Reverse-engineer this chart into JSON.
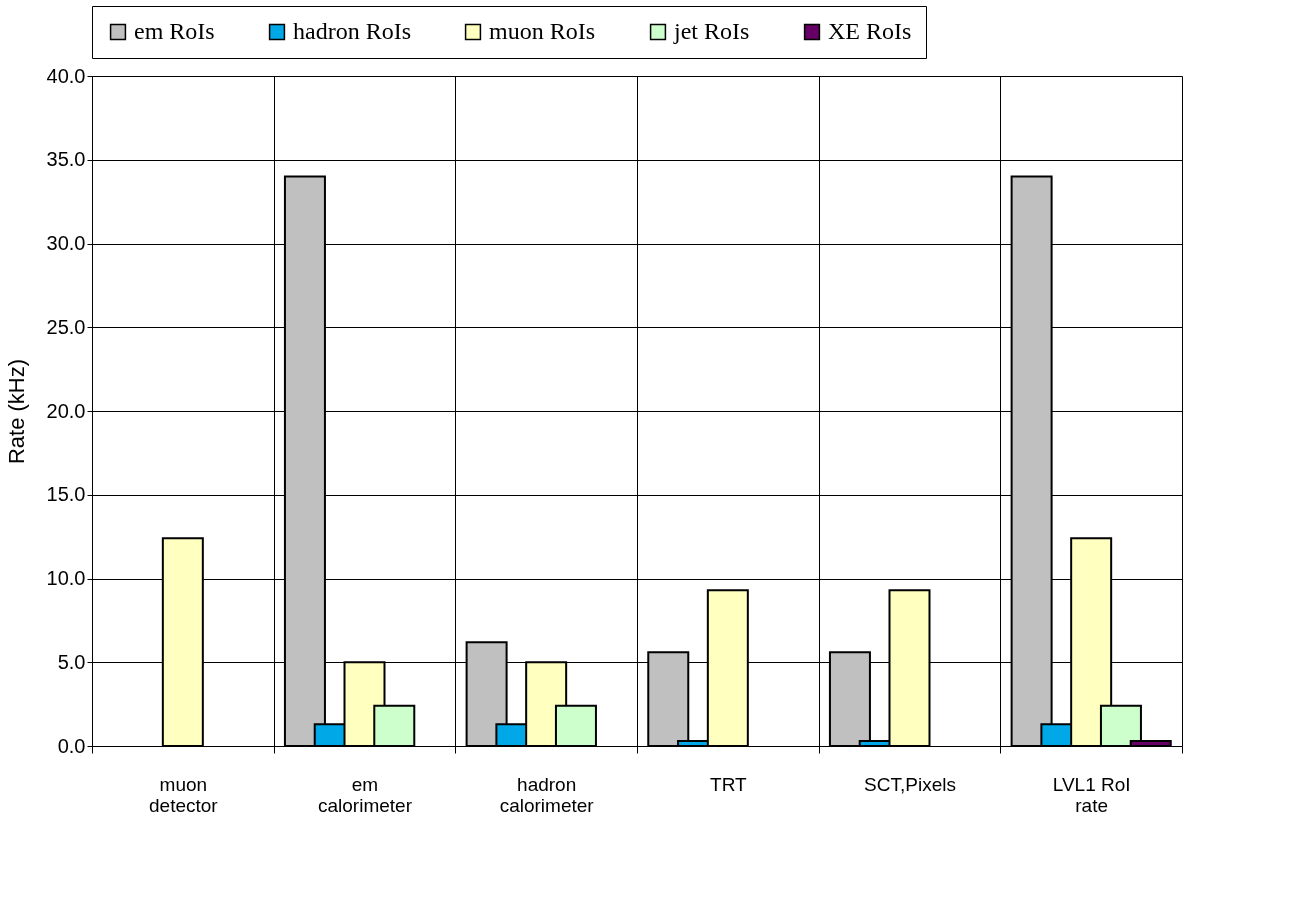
{
  "chart_data": {
    "type": "bar",
    "ylabel": "Rate (kHz)",
    "categories": [
      "muon detector",
      "em calorimeter",
      "hadron calorimeter",
      "TRT",
      "SCT,Pixels",
      "LVL1 RoI rate"
    ],
    "series": [
      {
        "name": "em RoIs",
        "color": "#c0c0c0",
        "values": [
          null,
          34.0,
          6.2,
          5.6,
          5.6,
          34.0
        ]
      },
      {
        "name": "hadron RoIs",
        "color": "#00a8e8",
        "values": [
          null,
          1.3,
          1.3,
          0.3,
          0.3,
          1.3
        ]
      },
      {
        "name": "muon RoIs",
        "color": "#ffffc0",
        "values": [
          12.4,
          5.0,
          5.0,
          9.3,
          9.3,
          12.4
        ]
      },
      {
        "name": "jet RoIs",
        "color": "#ccffcc",
        "values": [
          null,
          2.4,
          2.4,
          null,
          null,
          2.4
        ]
      },
      {
        "name": "XE RoIs",
        "color": "#660066",
        "values": [
          null,
          null,
          null,
          null,
          null,
          0.3
        ]
      }
    ],
    "ylim": [
      0,
      40
    ],
    "yticks": [
      {
        "value": 0,
        "label": "0.0"
      },
      {
        "value": 5,
        "label": "5.0"
      },
      {
        "value": 10,
        "label": "10.0"
      },
      {
        "value": 15,
        "label": "15.0"
      },
      {
        "value": 20,
        "label": "20.0"
      },
      {
        "value": 25,
        "label": "25.0"
      },
      {
        "value": 30,
        "label": "30.0"
      },
      {
        "value": 35,
        "label": "35.0"
      },
      {
        "value": 40,
        "label": "40.0"
      }
    ],
    "grid": true,
    "legend": "top"
  }
}
